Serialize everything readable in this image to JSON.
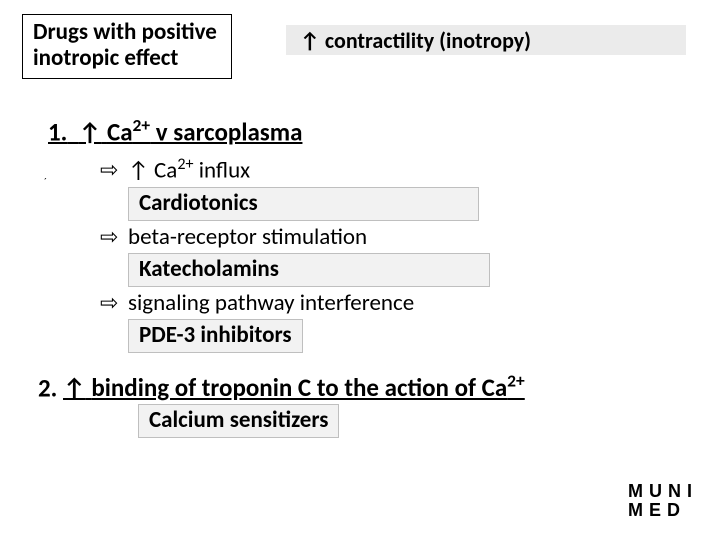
{
  "colors": {
    "highlight_bg": "#ebebeb",
    "box_bg": "#f2f2f2",
    "box_border": "#bfbfbf",
    "text": "#000000",
    "page_bg": "#ffffff"
  },
  "title": {
    "line1": "Drugs with positive",
    "line2": "inotropic effect"
  },
  "subtitle": {
    "arrow": "↑",
    "text": "contractility (inotropy)"
  },
  "section1": {
    "num": "1.",
    "arrow": "↑",
    "pre": "Ca",
    "sup": "2+",
    "post": " v sarcoplasma"
  },
  "bullets": {
    "b1": {
      "arrow": "⇨",
      "up": "↑",
      "pre": "Ca",
      "sup": "2+",
      "post": " influx",
      "box": "Cardiotonics"
    },
    "b2": {
      "arrow": "⇨",
      "text": "beta-receptor stimulation",
      "box": "Katecholamins"
    },
    "b3": {
      "arrow": "⇨",
      "text": "signaling pathway interference",
      "box": "PDE-3 inhibitors"
    }
  },
  "section2": {
    "num": "2.",
    "arrow": "↑",
    "text1": "binding of troponin C to the action of Ca",
    "sup": "2+",
    "box": "Calcium sensitizers"
  },
  "logo": {
    "l1": "MUNI",
    "l2": "MED"
  },
  "tinydot": "´"
}
